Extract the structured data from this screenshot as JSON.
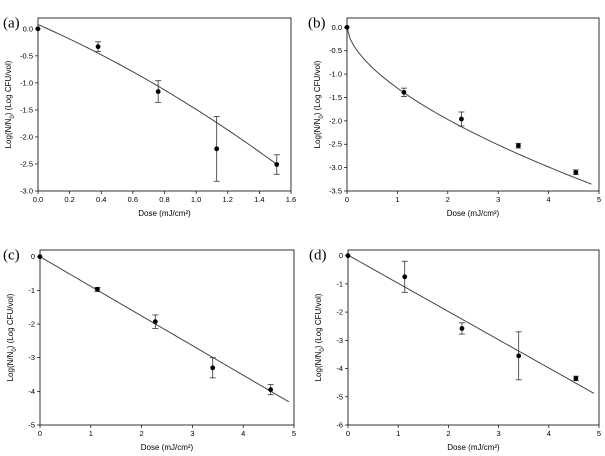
{
  "chart_data": [
    {
      "id": "a",
      "panel_label": "(a)",
      "type": "scatter",
      "xlabel": "Dose (mJ/cm²)",
      "ylabel_main": "Log(N/N",
      "ylabel_sub": "0",
      "ylabel_tail": ") (Log CFU/vol)",
      "xlim": [
        0,
        1.6
      ],
      "ylim": [
        -3.0,
        0.2
      ],
      "xticks": [
        0.0,
        0.2,
        0.4,
        0.6,
        0.8,
        1.0,
        1.2,
        1.4,
        1.6
      ],
      "xtick_labels": [
        "0.0",
        "0.2",
        "0.4",
        "0.6",
        "0.8",
        "1.0",
        "1.2",
        "1.4",
        "1.6"
      ],
      "yticks": [
        0.0,
        -0.5,
        -1.0,
        -1.5,
        -2.0,
        -2.5,
        -3.0
      ],
      "ytick_labels": [
        "0.0",
        "-0.5",
        "-1.0",
        "-1.5",
        "-2.0",
        "-2.5",
        "-3.0"
      ],
      "points": [
        {
          "x": 0.0,
          "y": 0.0,
          "err": 0.0
        },
        {
          "x": 0.38,
          "y": -0.33,
          "err": 0.09
        },
        {
          "x": 0.76,
          "y": -1.16,
          "err": 0.2
        },
        {
          "x": 1.13,
          "y": -2.22,
          "err": 0.6
        },
        {
          "x": 1.51,
          "y": -2.51,
          "err": 0.18
        }
      ],
      "fit": {
        "kind": "poly",
        "coef": [
          0.08,
          -1.29,
          -0.28
        ],
        "x0": 0.0,
        "x1": 1.52
      }
    },
    {
      "id": "b",
      "panel_label": "(b)",
      "type": "scatter",
      "xlabel": "Dose (mJ/cm²)",
      "ylabel_main": "Log(N/N",
      "ylabel_sub": "0",
      "ylabel_tail": ") (Log CFU/vol)",
      "xlim": [
        0,
        5
      ],
      "ylim": [
        -3.5,
        0.2
      ],
      "xticks": [
        0,
        1,
        2,
        3,
        4,
        5
      ],
      "xtick_labels": [
        "0",
        "1",
        "2",
        "3",
        "4",
        "5"
      ],
      "yticks": [
        0.0,
        -0.5,
        -1.0,
        -1.5,
        -2.0,
        -2.5,
        -3.0,
        -3.5
      ],
      "ytick_labels": [
        "0.0",
        "-0.5",
        "-1.0",
        "-1.5",
        "-2.0",
        "-2.5",
        "-3.0",
        "-3.5"
      ],
      "points": [
        {
          "x": 0.0,
          "y": 0.0,
          "err": 0.0
        },
        {
          "x": 1.13,
          "y": -1.39,
          "err": 0.09
        },
        {
          "x": 2.27,
          "y": -1.96,
          "err": 0.15
        },
        {
          "x": 3.4,
          "y": -2.53,
          "err": 0.05
        },
        {
          "x": 4.54,
          "y": -3.1,
          "err": 0.05
        }
      ],
      "fit": {
        "kind": "power",
        "a": -1.3,
        "p": 0.6,
        "x0": 0.0,
        "x1": 4.85
      }
    },
    {
      "id": "c",
      "panel_label": "(c)",
      "type": "scatter",
      "xlabel": "Dose (mJ/cm²)",
      "ylabel_main": "Log(N/N",
      "ylabel_sub": "0",
      "ylabel_tail": ") (Log CFU/vol)",
      "xlim": [
        0,
        5
      ],
      "ylim": [
        -5,
        0.2
      ],
      "xticks": [
        0,
        1,
        2,
        3,
        4,
        5
      ],
      "xtick_labels": [
        "0",
        "1",
        "2",
        "3",
        "4",
        "5"
      ],
      "yticks": [
        0,
        -1,
        -2,
        -3,
        -4,
        -5
      ],
      "ytick_labels": [
        "0",
        "-1",
        "-2",
        "-3",
        "-4",
        "-5"
      ],
      "points": [
        {
          "x": 0.0,
          "y": 0.0,
          "err": 0.0
        },
        {
          "x": 1.13,
          "y": -0.97,
          "err": 0.06
        },
        {
          "x": 2.27,
          "y": -1.93,
          "err": 0.2
        },
        {
          "x": 3.4,
          "y": -3.3,
          "err": 0.3
        },
        {
          "x": 4.54,
          "y": -3.95,
          "err": 0.15
        }
      ],
      "fit": {
        "kind": "poly",
        "coef": [
          0.0,
          -0.88,
          0.0
        ],
        "x0": 0.0,
        "x1": 4.9
      }
    },
    {
      "id": "d",
      "panel_label": "(d)",
      "type": "scatter",
      "xlabel": "Dose (mJ/cm²)",
      "ylabel_main": "Log(N/N",
      "ylabel_sub": "0",
      "ylabel_tail": ") (Log CFU/vol)",
      "xlim": [
        0,
        5
      ],
      "ylim": [
        -6,
        0.2
      ],
      "xticks": [
        0,
        1,
        2,
        3,
        4,
        5
      ],
      "xtick_labels": [
        "0",
        "1",
        "2",
        "3",
        "4",
        "5"
      ],
      "yticks": [
        0,
        -1,
        -2,
        -3,
        -4,
        -5,
        -6
      ],
      "ytick_labels": [
        "0",
        "-1",
        "-2",
        "-3",
        "-4",
        "-5",
        "-6"
      ],
      "points": [
        {
          "x": 0.0,
          "y": 0.0,
          "err": 0.0
        },
        {
          "x": 1.13,
          "y": -0.75,
          "err": 0.55
        },
        {
          "x": 2.27,
          "y": -2.58,
          "err": 0.2
        },
        {
          "x": 3.4,
          "y": -3.55,
          "err": 0.85
        },
        {
          "x": 4.54,
          "y": -4.35,
          "err": 0.08
        }
      ],
      "fit": {
        "kind": "poly",
        "coef": [
          0.02,
          -1.0,
          0.0
        ],
        "x0": 0.0,
        "x1": 4.9
      }
    }
  ]
}
